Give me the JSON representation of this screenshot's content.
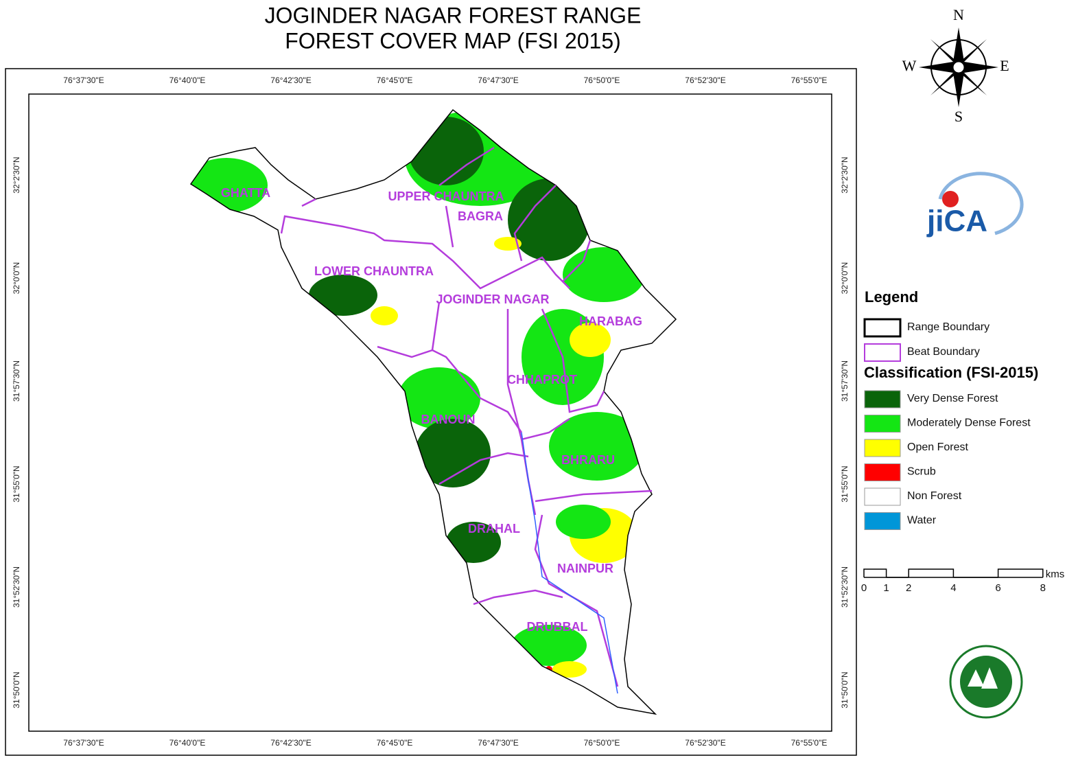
{
  "title": [
    "JOGINDER NAGAR FOREST RANGE",
    "FOREST COVER MAP (FSI 2015)"
  ],
  "map": {
    "x_labels": [
      "76°37'30\"E",
      "76°40'0\"E",
      "76°42'30\"E",
      "76°45'0\"E",
      "76°47'30\"E",
      "76°50'0\"E",
      "76°52'30\"E",
      "76°55'0\"E"
    ],
    "y_labels": [
      "32°2'30\"N",
      "32°0'0\"N",
      "31°57'30\"N",
      "31°55'0\"N",
      "31°52'30\"N",
      "31°50'0\"N"
    ],
    "beats": [
      "GHATTA",
      "UPPER CHAUNTRA",
      "BAGRA",
      "LOWER CHAUNTRA",
      "JOGINDER NAGAR",
      "HARABAG",
      "CHHAPROT",
      "BANOUN",
      "BHRARU",
      "DRAHAL",
      "NAINPUR",
      "DRUBBAL"
    ]
  },
  "compass": {
    "n": "N",
    "e": "E",
    "s": "S",
    "w": "W"
  },
  "logo": "jiCA",
  "legend": {
    "title": "Legend",
    "boundaries": [
      {
        "label": "Range Boundary",
        "color": "#000000"
      },
      {
        "label": "Beat Boundary",
        "color": "#b43cdc"
      }
    ],
    "classification_title": "Classification (FSI-2015)",
    "classes": [
      {
        "label": "Very Dense Forest",
        "color": "#0a640a"
      },
      {
        "label": "Moderately Dense Forest",
        "color": "#14e614"
      },
      {
        "label": "Open Forest",
        "color": "#ffff00"
      },
      {
        "label": "Scrub",
        "color": "#ff0000"
      },
      {
        "label": "Non Forest",
        "color": "#ffffff"
      },
      {
        "label": "Water",
        "color": "#0096d8"
      }
    ]
  },
  "scale": {
    "ticks": [
      0,
      1,
      2,
      4,
      6,
      8
    ],
    "unit": "kms"
  }
}
